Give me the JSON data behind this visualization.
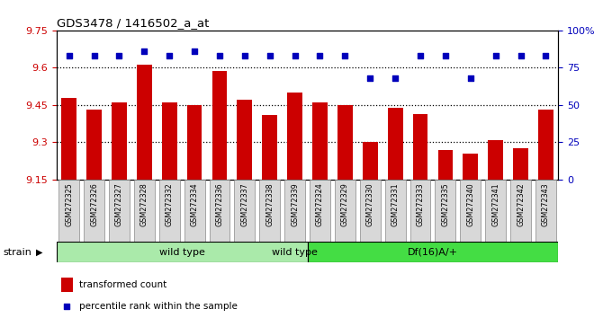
{
  "title": "GDS3478 / 1416502_a_at",
  "samples": [
    "GSM272325",
    "GSM272326",
    "GSM272327",
    "GSM272328",
    "GSM272332",
    "GSM272334",
    "GSM272336",
    "GSM272337",
    "GSM272338",
    "GSM272339",
    "GSM272324",
    "GSM272329",
    "GSM272330",
    "GSM272331",
    "GSM272333",
    "GSM272335",
    "GSM272340",
    "GSM272341",
    "GSM272342",
    "GSM272343"
  ],
  "bar_values": [
    9.48,
    9.43,
    9.46,
    9.61,
    9.46,
    9.45,
    9.585,
    9.47,
    9.41,
    9.5,
    9.46,
    9.45,
    9.3,
    9.44,
    9.415,
    9.27,
    9.255,
    9.31,
    9.275,
    9.43
  ],
  "percentile_values": [
    83,
    83,
    83,
    86,
    83,
    86,
    83,
    83,
    83,
    83,
    83,
    83,
    68,
    68,
    83,
    83,
    68,
    83,
    83,
    83
  ],
  "y_min": 9.15,
  "y_max": 9.75,
  "y_ticks": [
    9.15,
    9.3,
    9.45,
    9.6,
    9.75
  ],
  "y_ticks_labels": [
    "9.15",
    "9.3",
    "9.45",
    "9.6",
    "9.75"
  ],
  "right_y_ticks": [
    0,
    25,
    50,
    75,
    100
  ],
  "right_y_labels": [
    "0",
    "25",
    "50",
    "75",
    "100%"
  ],
  "bar_color": "#cc0000",
  "dot_color": "#0000bb",
  "background_color": "#ffffff",
  "plot_bg_color": "#ffffff",
  "dotted_lines": [
    9.3,
    9.45,
    9.6
  ],
  "wild_type_count": 10,
  "df16_count": 10,
  "group1_label": "wild type",
  "group2_label": "Df(16)A/+",
  "group1_color": "#aaeaaa",
  "group2_color": "#44dd44",
  "strain_label": "strain",
  "legend_bar_label": "transformed count",
  "legend_dot_label": "percentile rank within the sample",
  "left_tick_color": "#cc0000",
  "right_tick_color": "#0000bb",
  "label_bg_color": "#d8d8d8"
}
